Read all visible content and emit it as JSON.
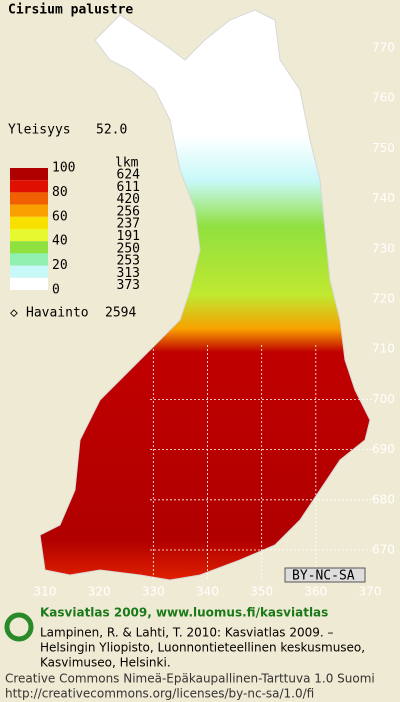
{
  "title": "Cirsium palustre",
  "frequency": {
    "label": "Yleisyys",
    "value": "52.0"
  },
  "legend": {
    "percent_labels": [
      100,
      80,
      60,
      40,
      20,
      0
    ],
    "count_header": "lkm",
    "counts": [
      624,
      611,
      420,
      256,
      237,
      191,
      250,
      253,
      313,
      373
    ],
    "class_colors": [
      "#b00000",
      "#e01000",
      "#f06000",
      "#f8a000",
      "#f8e000",
      "#e8f830",
      "#90e040",
      "#90f0b0",
      "#c8f8f8",
      "#ffffff"
    ]
  },
  "observations": {
    "label": "Havainto",
    "count": 2594
  },
  "grid": {
    "y_labels": [
      770,
      760,
      750,
      740,
      730,
      720,
      710,
      700,
      690,
      680,
      670
    ],
    "x_labels": [
      310,
      320,
      330,
      340,
      350,
      360,
      370
    ]
  },
  "license_badge": "BY-NC-SA",
  "footer": {
    "heading": "Kasviatlas 2009, www.luomus.fi/kasviatlas",
    "citation": [
      "Lampinen, R. & Lahti, T. 2010: Kasviatlas 2009. –",
      "Helsingin Yliopisto, Luonnontieteellinen keskusmuseo,",
      "Kasvimuseo, Helsinki."
    ],
    "license": [
      "Creative Commons Nimeä-Epäkaupallinen-Tarttuva 1.0 Suomi",
      "http://creativecommons.org/licenses/by-nc-sa/1.0/fi"
    ]
  }
}
